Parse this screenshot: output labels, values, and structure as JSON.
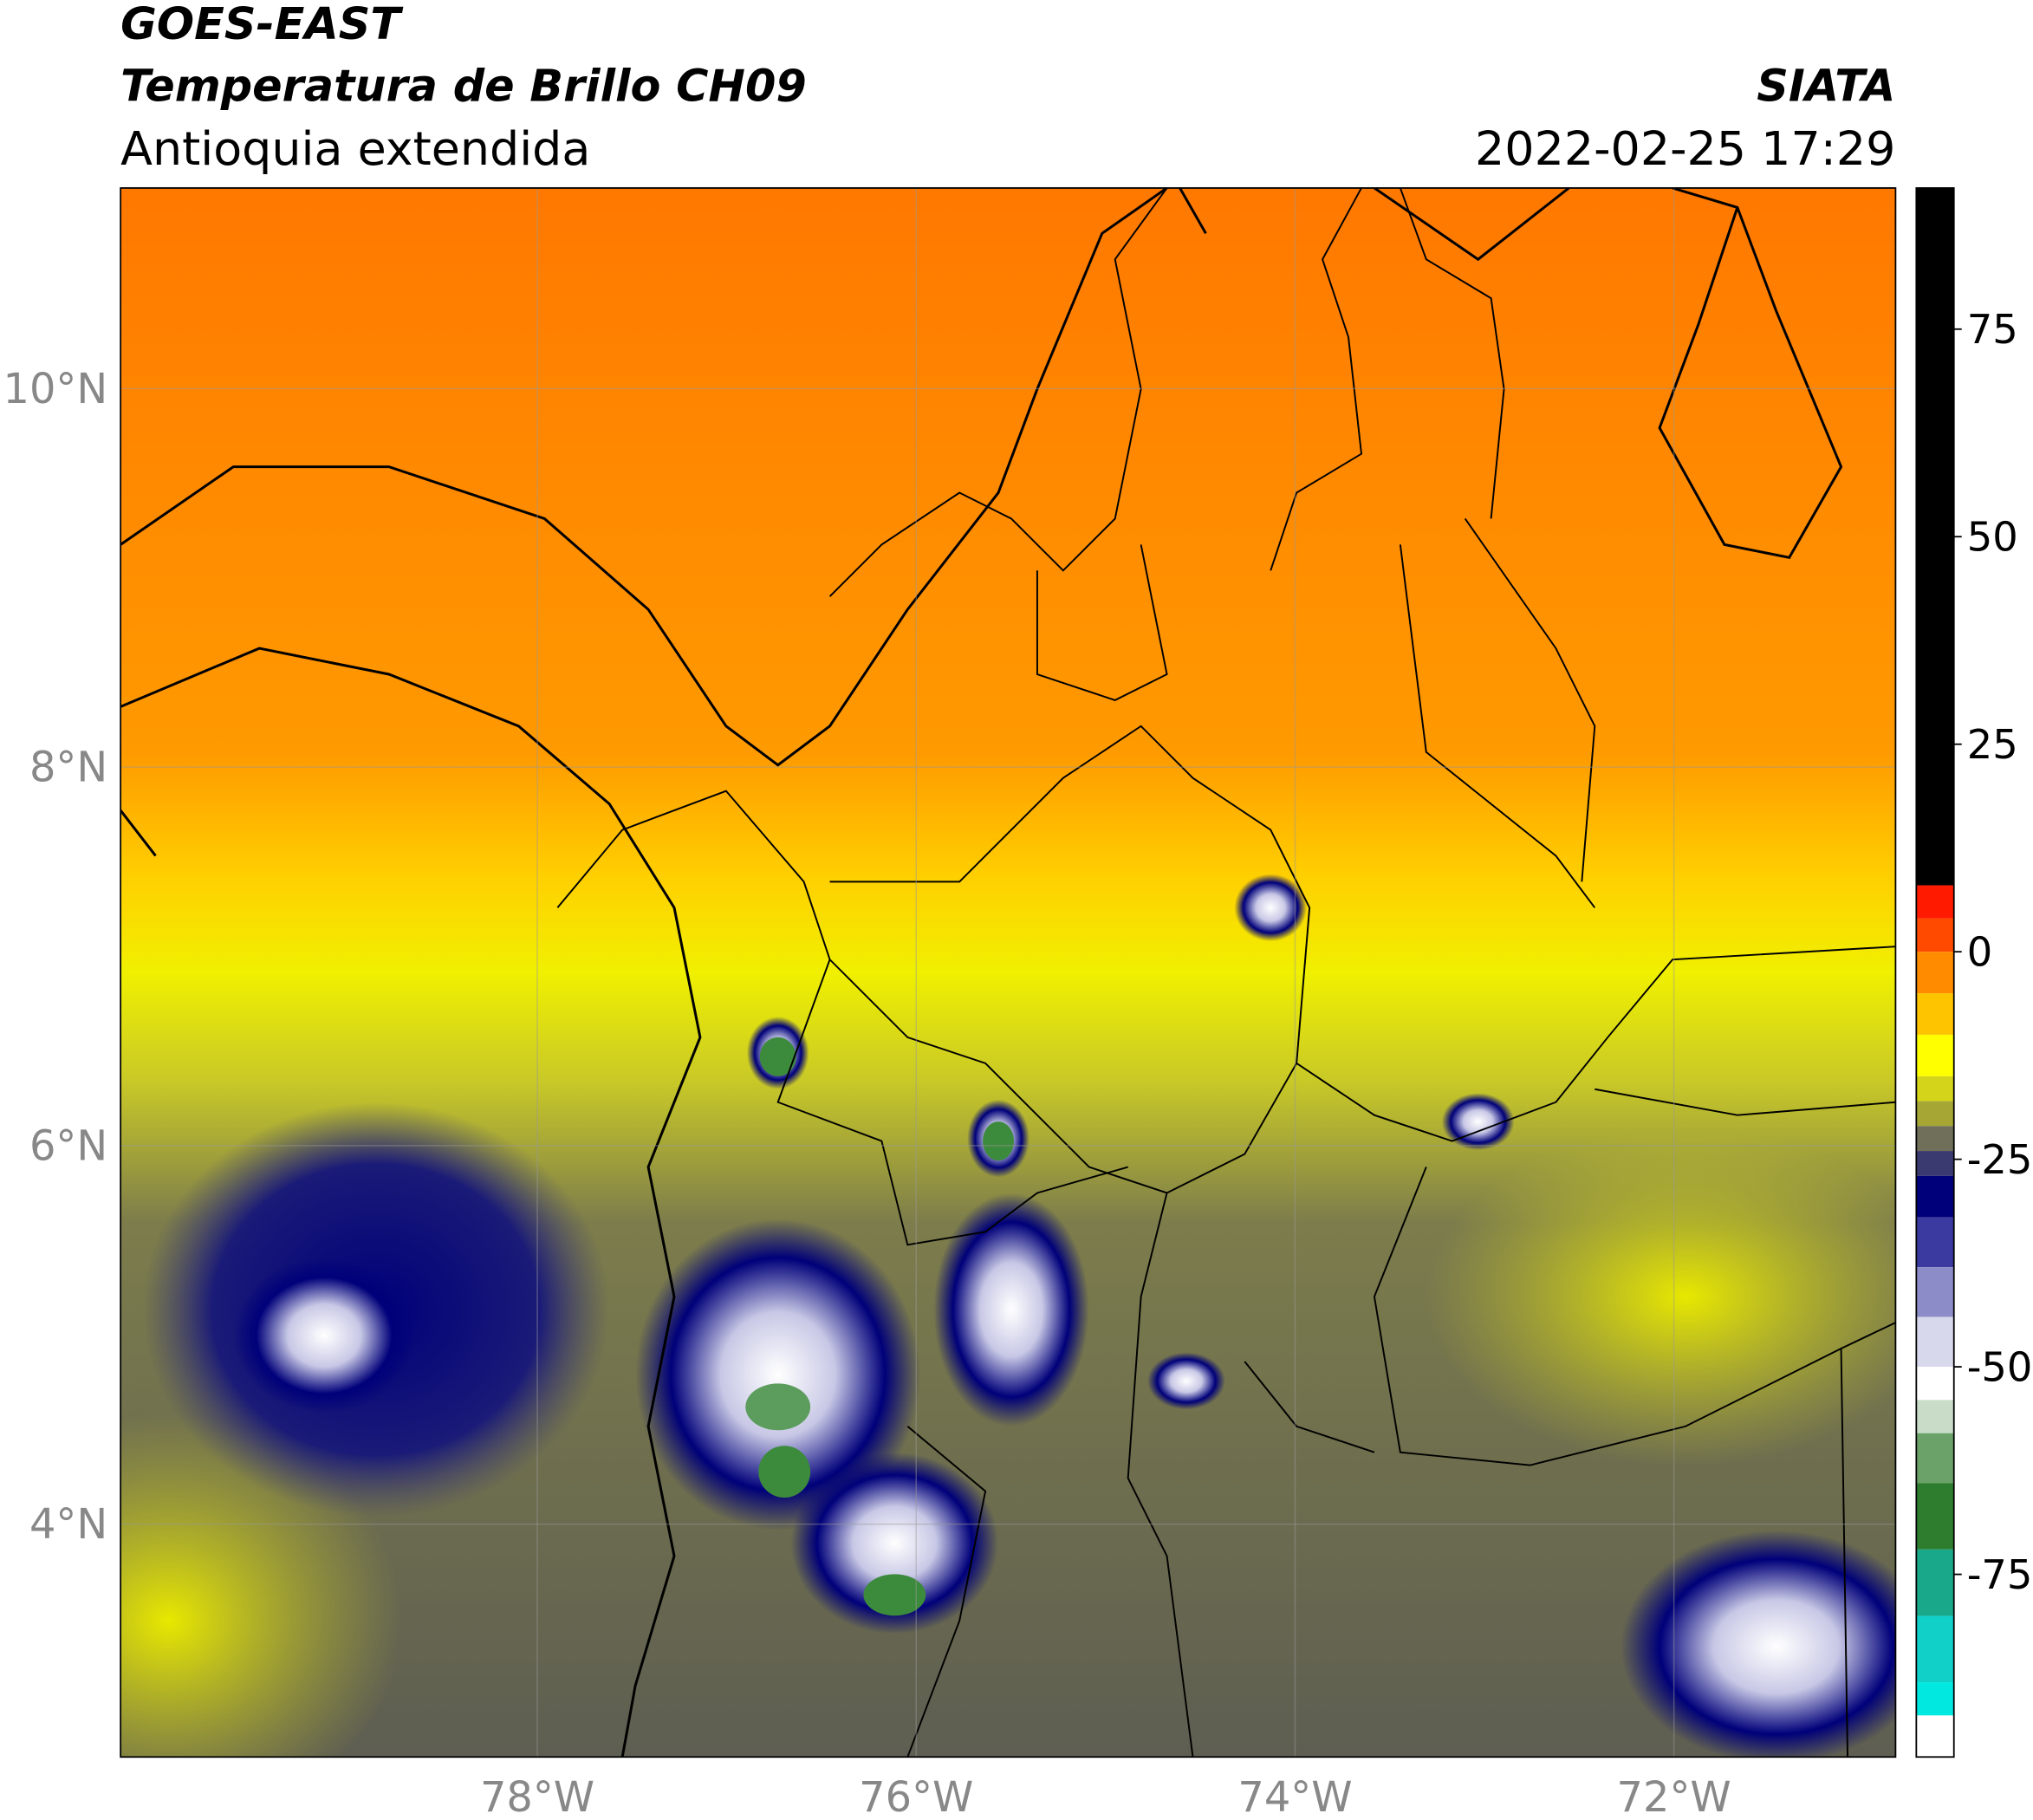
{
  "title": "GOES-EAST",
  "subtitle": "Temperatura de Brillo CH09",
  "region": "Antioquia extendida",
  "organization": "SIATA",
  "datetime": "2022-02-25 17:29",
  "map": {
    "xlim": [
      -80.2,
      -70.83
    ],
    "ylim": [
      2.77,
      11.06
    ],
    "xticks": [
      {
        "value": -78,
        "label": "78°W"
      },
      {
        "value": -76,
        "label": "76°W"
      },
      {
        "value": -74,
        "label": "74°W"
      },
      {
        "value": -72,
        "label": "72°W"
      }
    ],
    "yticks": [
      {
        "value": 4,
        "label": "4°N"
      },
      {
        "value": 6,
        "label": "6°N"
      },
      {
        "value": 8,
        "label": "8°N"
      },
      {
        "value": 10,
        "label": "10°N"
      }
    ],
    "grid": true
  },
  "colorbar": {
    "lim": [
      -97,
      92
    ],
    "ticks": [
      75,
      50,
      25,
      0,
      -25,
      -50,
      -75
    ],
    "segments": [
      {
        "from": 92,
        "to": 8,
        "color": "#000000"
      },
      {
        "from": 8,
        "to": 4,
        "color": "#ff1a00"
      },
      {
        "from": 4,
        "to": 0,
        "color": "#ff4a00"
      },
      {
        "from": 0,
        "to": -5,
        "color": "#ff8c00"
      },
      {
        "from": -5,
        "to": -10,
        "color": "#ffc400"
      },
      {
        "from": -10,
        "to": -15,
        "color": "#ffff00"
      },
      {
        "from": -15,
        "to": -18,
        "color": "#d4d41a"
      },
      {
        "from": -18,
        "to": -21,
        "color": "#a6a634"
      },
      {
        "from": -21,
        "to": -24,
        "color": "#70705a"
      },
      {
        "from": -24,
        "to": -27,
        "color": "#3a3a70"
      },
      {
        "from": -27,
        "to": -32,
        "color": "#00007a"
      },
      {
        "from": -32,
        "to": -38,
        "color": "#3a3aa0"
      },
      {
        "from": -38,
        "to": -44,
        "color": "#8c8cc8"
      },
      {
        "from": -44,
        "to": -50,
        "color": "#d8d8ec"
      },
      {
        "from": -50,
        "to": -54,
        "color": "#ffffff"
      },
      {
        "from": -54,
        "to": -58,
        "color": "#c8dcc8"
      },
      {
        "from": -58,
        "to": -64,
        "color": "#6aa26a"
      },
      {
        "from": -64,
        "to": -72,
        "color": "#2e7d2e"
      },
      {
        "from": -72,
        "to": -80,
        "color": "#1aa88a"
      },
      {
        "from": -80,
        "to": -88,
        "color": "#10d0c8"
      },
      {
        "from": -88,
        "to": -92,
        "color": "#00e8e0"
      },
      {
        "from": -92,
        "to": -97,
        "color": "#ffffff"
      }
    ]
  }
}
